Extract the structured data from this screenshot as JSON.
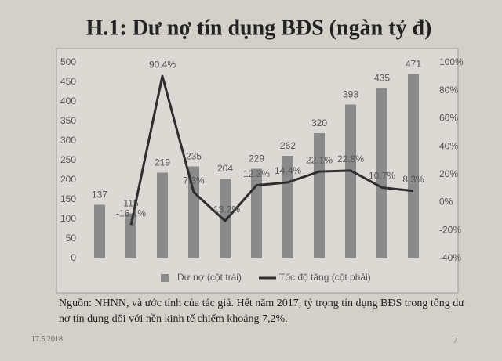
{
  "chart_data": {
    "type": "bar",
    "title": "H.1: Dư nợ tín dụng BĐS (ngàn tỷ đ)",
    "categories": [
      null,
      null,
      null,
      null,
      null,
      null,
      null,
      null,
      null,
      null,
      null
    ],
    "series": [
      {
        "name": "Dư nợ (cột trái)",
        "type": "bar",
        "color": "#8a8a8a",
        "values": [
          137,
          115,
          219,
          235,
          204,
          229,
          262,
          320,
          393,
          435,
          471
        ]
      },
      {
        "name": "Tốc độ tăng (cột phải)",
        "type": "line",
        "axis": "y2",
        "color": "#2e2e2e",
        "values": [
          null,
          -16.1,
          90.4,
          7.3,
          -13.2,
          12.3,
          14.4,
          22.1,
          22.8,
          10.7,
          8.3
        ],
        "value_labels": [
          null,
          "-16.1%",
          "90.4%",
          "7.3%",
          "-13.2%",
          "12.3%",
          "14.4%",
          "22.1%",
          "22.8%",
          "10.7%",
          "8.3%"
        ]
      }
    ],
    "ylim": [
      0,
      500
    ],
    "yticks": [
      0,
      50,
      100,
      150,
      200,
      250,
      300,
      350,
      400,
      450,
      500
    ],
    "y2lim": [
      -40,
      100
    ],
    "y2ticks": [
      {
        "value": -40,
        "label": "-40%"
      },
      {
        "value": -20,
        "label": "-20%"
      },
      {
        "value": 0,
        "label": "0%"
      },
      {
        "value": 20,
        "label": "20%"
      },
      {
        "value": 40,
        "label": "40%"
      },
      {
        "value": 60,
        "label": "60%"
      },
      {
        "value": 80,
        "label": "80%"
      },
      {
        "value": 100,
        "label": "100%"
      }
    ],
    "grid": false,
    "legend": "bottom"
  },
  "note": "Nguồn: NHNN, và ước tính của tác giả. Hết năm 2017, tỷ trọng tín dụng BĐS trong tổng dư nợ tín dụng đối với nền kinh tế chiếm khoảng 7,2%.",
  "footer": {
    "date": "17.5.2018",
    "page": "7"
  }
}
